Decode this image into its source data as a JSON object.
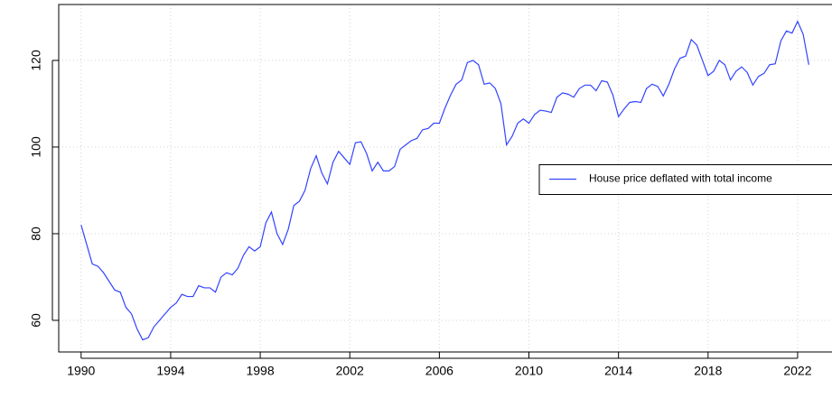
{
  "chart_data": {
    "type": "line",
    "x": [
      1990,
      1990.25,
      1990.5,
      1990.75,
      1991,
      1991.25,
      1991.5,
      1991.75,
      1992,
      1992.25,
      1992.5,
      1992.75,
      1993,
      1993.25,
      1993.5,
      1993.75,
      1994,
      1994.25,
      1994.5,
      1994.75,
      1995,
      1995.25,
      1995.5,
      1995.75,
      1996,
      1996.25,
      1996.5,
      1996.75,
      1997,
      1997.25,
      1997.5,
      1997.75,
      1998,
      1998.25,
      1998.5,
      1998.75,
      1999,
      1999.25,
      1999.5,
      1999.75,
      2000,
      2000.25,
      2000.5,
      2000.75,
      2001,
      2001.25,
      2001.5,
      2001.75,
      2002,
      2002.25,
      2002.5,
      2002.75,
      2003,
      2003.25,
      2003.5,
      2003.75,
      2004,
      2004.25,
      2004.5,
      2004.75,
      2005,
      2005.25,
      2005.5,
      2005.75,
      2006,
      2006.25,
      2006.5,
      2006.75,
      2007,
      2007.25,
      2007.5,
      2007.75,
      2008,
      2008.25,
      2008.5,
      2008.75,
      2009,
      2009.25,
      2009.5,
      2009.75,
      2010,
      2010.25,
      2010.5,
      2010.75,
      2011,
      2011.25,
      2011.5,
      2011.75,
      2012,
      2012.25,
      2012.5,
      2012.75,
      2013,
      2013.25,
      2013.5,
      2013.75,
      2014,
      2014.25,
      2014.5,
      2014.75,
      2015,
      2015.25,
      2015.5,
      2015.75,
      2016,
      2016.25,
      2016.5,
      2016.75,
      2017,
      2017.25,
      2017.5,
      2017.75,
      2018,
      2018.25,
      2018.5,
      2018.75,
      2019,
      2019.25,
      2019.5,
      2019.75,
      2020,
      2020.25,
      2020.5,
      2020.75,
      2021,
      2021.25,
      2021.5,
      2021.75,
      2022,
      2022.25,
      2022.5
    ],
    "series": [
      {
        "name": "House price deflated with total income",
        "color": "#3344ff",
        "values": [
          82,
          77.5,
          73,
          72.5,
          71,
          69,
          67,
          66.5,
          63,
          61.5,
          58,
          55.5,
          56,
          58.5,
          60,
          61.5,
          63,
          64,
          66,
          65.5,
          65.5,
          68,
          67.5,
          67.5,
          66.5,
          70,
          71,
          70.5,
          72,
          75,
          77,
          76,
          77,
          82.5,
          85,
          80,
          77.5,
          81,
          86.5,
          87.5,
          90,
          95,
          98,
          94,
          91.5,
          96.5,
          99,
          97.5,
          96,
          101,
          101.2,
          98.5,
          94.5,
          96.5,
          94.5,
          94.5,
          95.5,
          99.5,
          100.5,
          101.5,
          102,
          104,
          104.3,
          105.5,
          105.5,
          109,
          112,
          114.5,
          115.5,
          119.5,
          120,
          119,
          114.5,
          114.8,
          113.5,
          110,
          100.5,
          102.5,
          105.5,
          106.5,
          105.5,
          107.5,
          108.5,
          108.3,
          108,
          111.5,
          112.5,
          112.2,
          111.5,
          113.5,
          114.3,
          114.3,
          113,
          115.3,
          115,
          112,
          107,
          108.8,
          110.3,
          110.5,
          110.3,
          113.5,
          114.5,
          114,
          111.8,
          114.5,
          118,
          120.5,
          121,
          124.8,
          123.5,
          120,
          116.5,
          117.5,
          120,
          119,
          115.5,
          117.5,
          118.5,
          117.2,
          114.3,
          116.3,
          117,
          119,
          119.2,
          124.5,
          126.8,
          126.3,
          129,
          126,
          119
        ]
      }
    ],
    "xlim": [
      1989,
      2024.1
    ],
    "ylim": [
      52.7,
      132.9
    ],
    "xticks": [
      1990,
      1994,
      1998,
      2002,
      2006,
      2010,
      2014,
      2018,
      2022
    ],
    "yticks": [
      60,
      80,
      100,
      120
    ],
    "grid": true,
    "legend": "right"
  }
}
